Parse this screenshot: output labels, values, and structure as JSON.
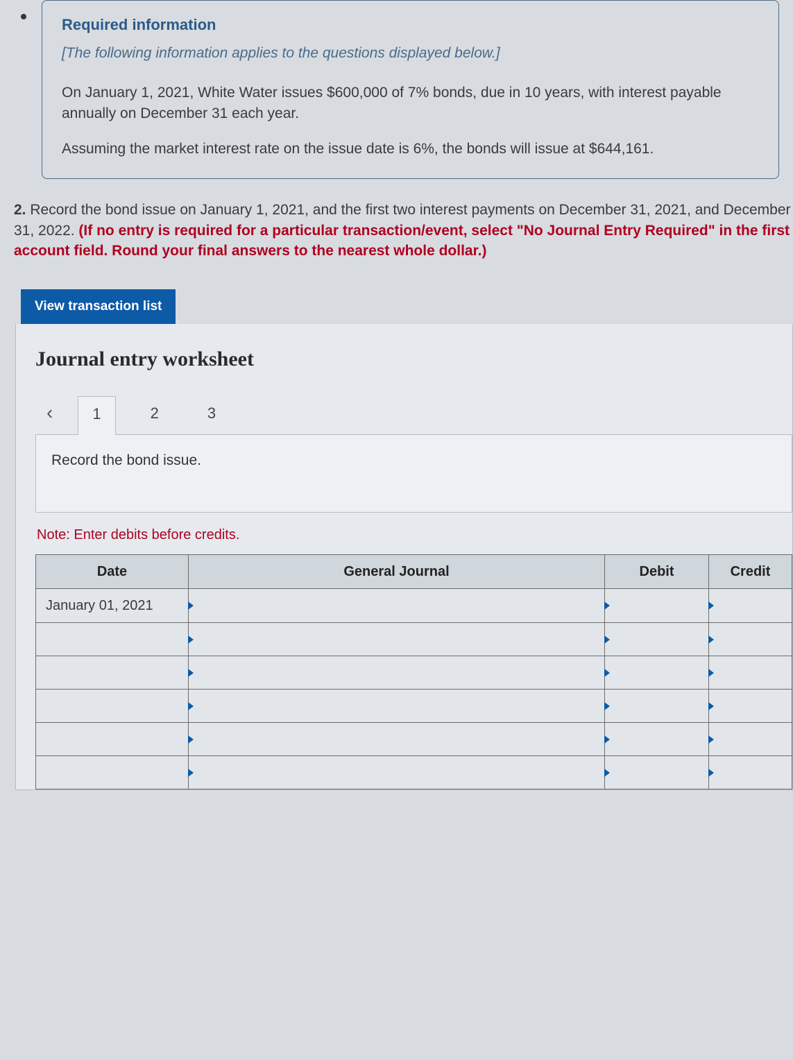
{
  "info": {
    "heading": "Required information",
    "subtitle": "[The following information applies to the questions displayed below.]",
    "para1": "On January 1, 2021, White Water issues $600,000 of 7% bonds, due in 10 years, with interest payable annually on December 31 each year.",
    "para2": "Assuming the market interest rate on the issue date is 6%, the bonds will issue at $644,161."
  },
  "question": {
    "number": "2.",
    "text_a": " Record the bond issue on January 1, 2021, and the first two interest payments on December 31, 2021, and December 31, 2022. ",
    "text_b": "(If no entry is required for a particular transaction/event, select \"No Journal Entry Required\" in the first account field. Round your final answers to the nearest whole dollar.)"
  },
  "buttons": {
    "view_list": "View transaction list"
  },
  "worksheet": {
    "title": "Journal entry worksheet",
    "tabs": [
      "1",
      "2",
      "3"
    ],
    "active_tab": 0,
    "entry_description": "Record the bond issue.",
    "note": "Note: Enter debits before credits.",
    "table": {
      "columns": [
        "Date",
        "General Journal",
        "Debit",
        "Credit"
      ],
      "rows": [
        {
          "date": "January 01, 2021",
          "gj": "",
          "debit": "",
          "credit": ""
        },
        {
          "date": "",
          "gj": "",
          "debit": "",
          "credit": ""
        },
        {
          "date": "",
          "gj": "",
          "debit": "",
          "credit": ""
        },
        {
          "date": "",
          "gj": "",
          "debit": "",
          "credit": ""
        },
        {
          "date": "",
          "gj": "",
          "debit": "",
          "credit": ""
        },
        {
          "date": "",
          "gj": "",
          "debit": "",
          "credit": ""
        }
      ],
      "header_bg": "#cfd6dc",
      "cell_bg": "#e2e6ea",
      "border_color": "#6a6a6a",
      "marker_color": "#0d5aa7"
    }
  },
  "colors": {
    "page_bg": "#d8dce0",
    "panel_bg": "#e6eaee",
    "primary_blue": "#0d5aa7",
    "heading_blue": "#2a5a8a",
    "alert_red": "#b00020"
  }
}
